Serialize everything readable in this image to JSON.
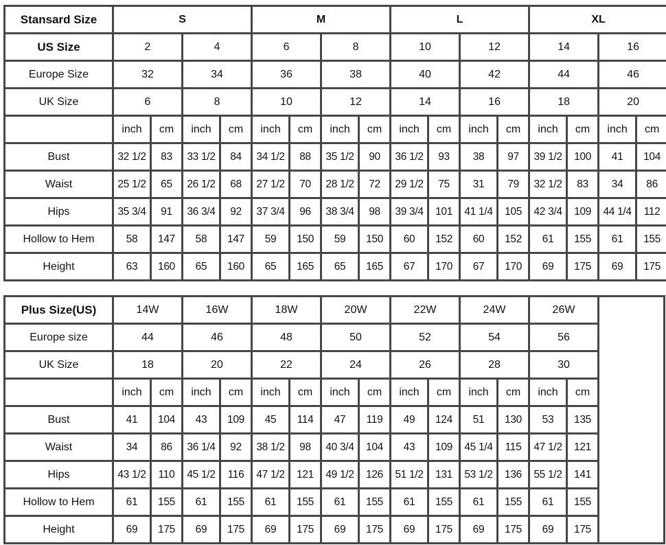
{
  "standard": {
    "header_label": "Stansard Size",
    "groups": [
      "S",
      "M",
      "L",
      "XL"
    ],
    "size_rows": [
      {
        "label": "US Size",
        "bold": true,
        "values": [
          "2",
          "4",
          "6",
          "8",
          "10",
          "12",
          "14",
          "16"
        ]
      },
      {
        "label": "Europe Size",
        "values": [
          "32",
          "34",
          "36",
          "38",
          "40",
          "42",
          "44",
          "46"
        ]
      },
      {
        "label": "UK Size",
        "values": [
          "6",
          "8",
          "10",
          "12",
          "14",
          "16",
          "18",
          "20"
        ]
      }
    ],
    "units": [
      "inch",
      "cm"
    ],
    "measure_rows": [
      {
        "label": "Bust",
        "values": [
          "32 1/2",
          "83",
          "33 1/2",
          "84",
          "34 1/2",
          "88",
          "35 1/2",
          "90",
          "36 1/2",
          "93",
          "38",
          "97",
          "39 1/2",
          "100",
          "41",
          "104"
        ]
      },
      {
        "label": "Waist",
        "values": [
          "25 1/2",
          "65",
          "26 1/2",
          "68",
          "27 1/2",
          "70",
          "28 1/2",
          "72",
          "29 1/2",
          "75",
          "31",
          "79",
          "32 1/2",
          "83",
          "34",
          "86"
        ]
      },
      {
        "label": "Hips",
        "values": [
          "35 3/4",
          "91",
          "36 3/4",
          "92",
          "37 3/4",
          "96",
          "38 3/4",
          "98",
          "39 3/4",
          "101",
          "41 1/4",
          "105",
          "42 3/4",
          "109",
          "44 1/4",
          "112"
        ]
      },
      {
        "label": "Hollow to Hem",
        "values": [
          "58",
          "147",
          "58",
          "147",
          "59",
          "150",
          "59",
          "150",
          "60",
          "152",
          "60",
          "152",
          "61",
          "155",
          "61",
          "155"
        ]
      },
      {
        "label": "Height",
        "values": [
          "63",
          "160",
          "65",
          "160",
          "65",
          "165",
          "65",
          "165",
          "67",
          "170",
          "67",
          "170",
          "69",
          "175",
          "69",
          "175"
        ]
      }
    ]
  },
  "plus": {
    "header_label": "Plus Size(US)",
    "sizes": [
      "14W",
      "16W",
      "18W",
      "20W",
      "22W",
      "24W",
      "26W"
    ],
    "size_rows": [
      {
        "label": "Europe size",
        "values": [
          "44",
          "46",
          "48",
          "50",
          "52",
          "54",
          "56"
        ]
      },
      {
        "label": "UK Size",
        "values": [
          "18",
          "20",
          "22",
          "24",
          "26",
          "28",
          "30"
        ]
      }
    ],
    "units": [
      "inch",
      "cm"
    ],
    "measure_rows": [
      {
        "label": "Bust",
        "values": [
          "41",
          "104",
          "43",
          "109",
          "45",
          "114",
          "47",
          "119",
          "49",
          "124",
          "51",
          "130",
          "53",
          "135"
        ]
      },
      {
        "label": "Waist",
        "values": [
          "34",
          "86",
          "36 1/4",
          "92",
          "38 1/2",
          "98",
          "40 3/4",
          "104",
          "43",
          "109",
          "45 1/4",
          "115",
          "47 1/2",
          "121"
        ]
      },
      {
        "label": "Hips",
        "values": [
          "43 1/2",
          "110",
          "45 1/2",
          "116",
          "47 1/2",
          "121",
          "49 1/2",
          "126",
          "51 1/2",
          "131",
          "53 1/2",
          "136",
          "55 1/2",
          "141"
        ]
      },
      {
        "label": "Hollow to Hem",
        "values": [
          "61",
          "155",
          "61",
          "155",
          "61",
          "155",
          "61",
          "155",
          "61",
          "155",
          "61",
          "155",
          "61",
          "155"
        ]
      },
      {
        "label": "Height",
        "values": [
          "69",
          "175",
          "69",
          "175",
          "69",
          "175",
          "69",
          "175",
          "69",
          "175",
          "69",
          "175",
          "69",
          "175"
        ]
      }
    ]
  },
  "colors": {
    "border": "#474747",
    "text": "#111111",
    "background": "#ffffff"
  }
}
